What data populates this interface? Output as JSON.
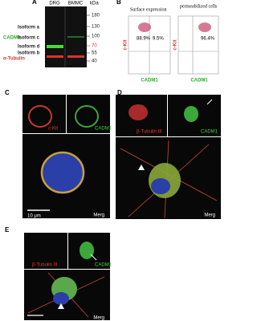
{
  "panels": [
    {
      "label": "A",
      "lanes": [
        "DRG",
        "BMMC"
      ],
      "unit": "kDa",
      "markers": [
        180,
        130,
        100,
        70,
        55,
        40
      ],
      "bands": [
        "Isoform a",
        "CADM1",
        "Isoform c",
        "Isoform d",
        "Isoform b",
        "α-Tubulin"
      ]
    },
    {
      "label": "B",
      "plots": [
        {
          "title": "Surface expression",
          "gates": [
            "88.9%",
            "9.5%"
          ],
          "y_label": "c-Kit",
          "x_label": "CADM1"
        },
        {
          "title": "permeabilized cells",
          "gates": [
            "96.4%"
          ],
          "y_label": "c-Kit",
          "x_label": "CADM1"
        }
      ]
    },
    {
      "label": "C",
      "channels": [
        "c-Kit",
        "CADM1"
      ],
      "merge": "Merg",
      "scale_bar": "10 μm"
    },
    {
      "label": "D",
      "channels": [
        "β-Tubulin III",
        "CADM1"
      ],
      "merge": "Merg"
    },
    {
      "label": "E",
      "channels": [
        "β-Tubulin III",
        "CADM1"
      ],
      "merge": "Merg"
    }
  ]
}
